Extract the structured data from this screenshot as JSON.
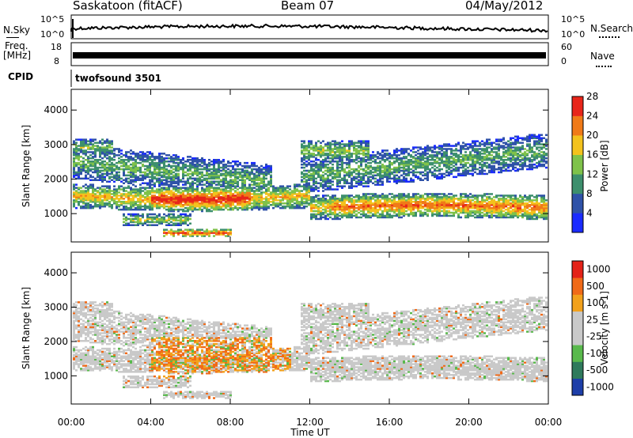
{
  "header": {
    "station": "Saskatoon (fitACF)",
    "beam": "Beam 07",
    "date": "04/May/2012"
  },
  "top_panels": {
    "nsky": {
      "label": "N.Sky",
      "ticks": [
        "10^5",
        "10^0"
      ],
      "right_label": "N.Search",
      "right_ticks": [
        "10^5",
        "10^0"
      ]
    },
    "freq": {
      "label": "Freq.",
      "unit": "[MHz]",
      "ticks": [
        "18",
        "8"
      ],
      "right_label": "Nave",
      "right_ticks": [
        "60",
        "0"
      ]
    },
    "cpid": {
      "label": "CPID",
      "value": "twofsound 3501"
    }
  },
  "chart_data": [
    {
      "type": "heatmap",
      "title": "",
      "ylabel": "Slant Range [km]",
      "xlabel": "",
      "ylim": [
        180,
        4600
      ],
      "yticks": [
        1000,
        2000,
        3000,
        4000
      ],
      "xlim": [
        "00:00",
        "24:00"
      ],
      "colorbar": {
        "label": "Power [dB]",
        "ticks": [
          "4",
          "8",
          "12",
          "16",
          "20",
          "24",
          "28"
        ],
        "colors": [
          "#1a2bff",
          "#2f52a8",
          "#3d8f6d",
          "#7fc24a",
          "#f3c21d",
          "#f07a18",
          "#e8261a"
        ]
      }
    },
    {
      "type": "heatmap",
      "title": "",
      "ylabel": "Slant Range [km]",
      "xlabel": "Time UT",
      "ylim": [
        180,
        4600
      ],
      "yticks": [
        1000,
        2000,
        3000,
        4000
      ],
      "xticks": [
        "00:00",
        "04:00",
        "08:00",
        "12:00",
        "16:00",
        "20:00",
        "00:00"
      ],
      "colorbar": {
        "label": "Velocity [m s-1]",
        "ticks": [
          "1000",
          "500",
          "100",
          "25",
          "-25",
          "-100",
          "-500",
          "-1000"
        ],
        "colors": [
          "#1d3ea8",
          "#2f7a5c",
          "#59b94c",
          "#c9c9c9",
          "#c9c9c9",
          "#f2a11c",
          "#f06a18",
          "#e42218"
        ]
      }
    }
  ]
}
